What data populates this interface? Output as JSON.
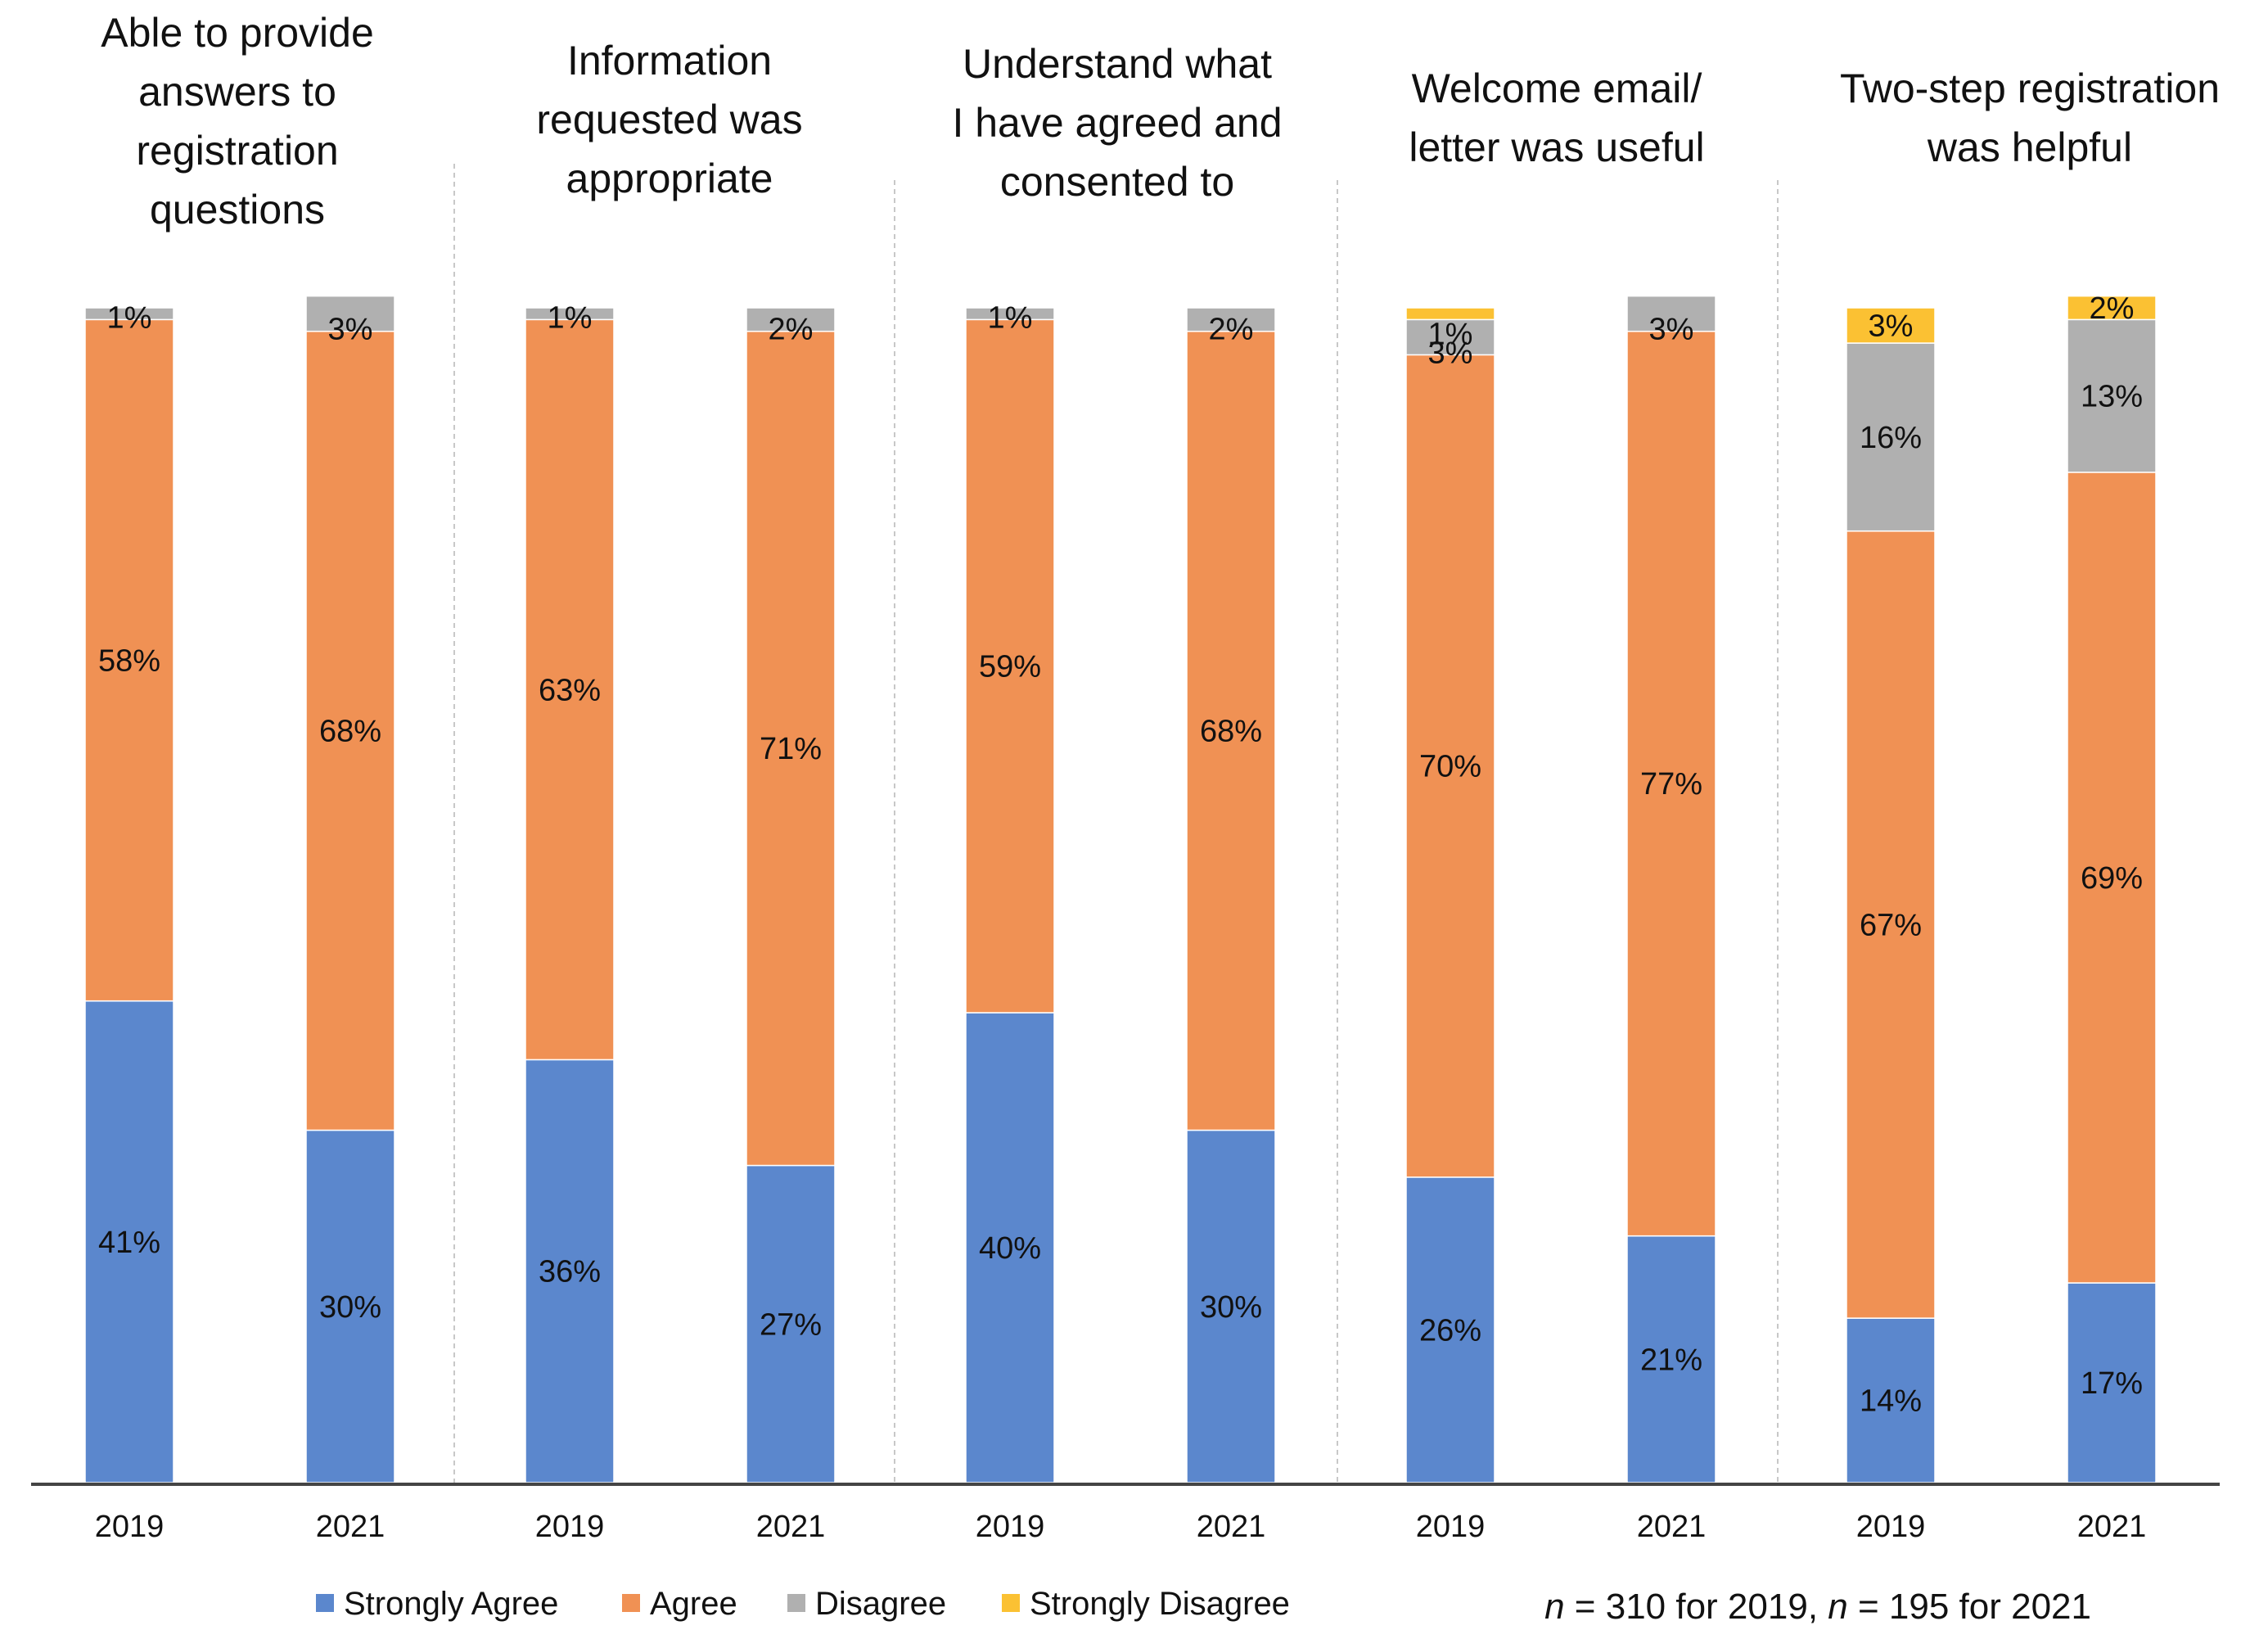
{
  "chart_data": {
    "type": "bar",
    "stacked": true,
    "unit": "%",
    "ylim": [
      0,
      100
    ],
    "groups": [
      {
        "title_lines": [
          "Able to provide",
          "answers to",
          "registration",
          "questions"
        ],
        "bars": [
          {
            "year": "2019",
            "values": {
              "strongly_agree": 41,
              "agree": 58,
              "disagree": 1,
              "strongly_disagree": 0
            }
          },
          {
            "year": "2021",
            "values": {
              "strongly_agree": 30,
              "agree": 68,
              "disagree": 3,
              "strongly_disagree": 0
            }
          }
        ]
      },
      {
        "title_lines": [
          "Information",
          "requested was",
          "appropriate"
        ],
        "bars": [
          {
            "year": "2019",
            "values": {
              "strongly_agree": 36,
              "agree": 63,
              "disagree": 1,
              "strongly_disagree": 0
            }
          },
          {
            "year": "2021",
            "values": {
              "strongly_agree": 27,
              "agree": 71,
              "disagree": 2,
              "strongly_disagree": 0
            }
          }
        ]
      },
      {
        "title_lines": [
          "Understand what",
          "I have agreed and",
          "consented to"
        ],
        "bars": [
          {
            "year": "2019",
            "values": {
              "strongly_agree": 40,
              "agree": 59,
              "disagree": 1,
              "strongly_disagree": 0
            }
          },
          {
            "year": "2021",
            "values": {
              "strongly_agree": 30,
              "agree": 68,
              "disagree": 2,
              "strongly_disagree": 0
            }
          }
        ]
      },
      {
        "title_lines": [
          "Welcome email/",
          "letter was useful"
        ],
        "bars": [
          {
            "year": "2019",
            "values": {
              "strongly_agree": 26,
              "agree": 70,
              "disagree": 3,
              "strongly_disagree": 1
            }
          },
          {
            "year": "2021",
            "values": {
              "strongly_agree": 21,
              "agree": 77,
              "disagree": 3,
              "strongly_disagree": 0
            }
          }
        ]
      },
      {
        "title_lines": [
          "Two-step registration",
          "was helpful"
        ],
        "bars": [
          {
            "year": "2019",
            "values": {
              "strongly_agree": 14,
              "agree": 67,
              "disagree": 16,
              "strongly_disagree": 3
            }
          },
          {
            "year": "2021",
            "values": {
              "strongly_agree": 17,
              "agree": 69,
              "disagree": 13,
              "strongly_disagree": 2
            }
          }
        ]
      }
    ],
    "series": [
      {
        "key": "strongly_agree",
        "name": "Strongly Agree",
        "color": "#5b87cd"
      },
      {
        "key": "agree",
        "name": "Agree",
        "color": "#f09154"
      },
      {
        "key": "disagree",
        "name": "Disagree",
        "color": "#b0b0b0"
      },
      {
        "key": "strongly_disagree",
        "name": "Strongly Disagree",
        "color": "#fbc133"
      }
    ],
    "legend_position": "bottom-left",
    "note": {
      "n_symbol": "n",
      "part1": " = 310 for 2019, ",
      "part2": " = 195 for 2021"
    }
  }
}
